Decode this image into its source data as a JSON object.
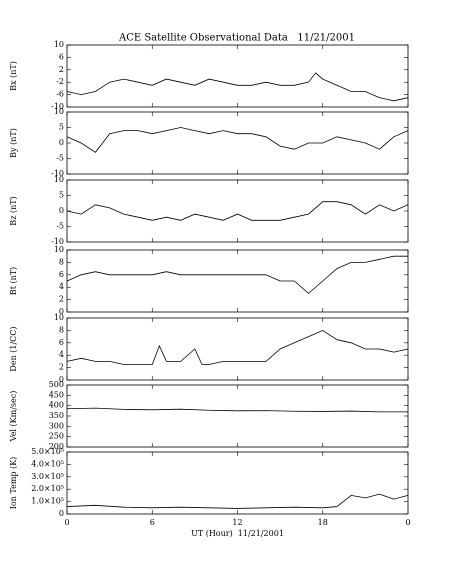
{
  "title": "ACE Satellite Observational Data   11/21/2001",
  "chart_data": [
    {
      "type": "line",
      "ylabel": "Bx (nT)",
      "xlim": [
        0,
        24
      ],
      "xticks": [
        0,
        6,
        12,
        18,
        24
      ],
      "ylim": [
        -10,
        10
      ],
      "yticks": [
        -10,
        -6,
        -2,
        2,
        6,
        10
      ],
      "series": [
        {
          "color": "#000000",
          "x": [
            0,
            1,
            2,
            3,
            4,
            5,
            6,
            7,
            8,
            9,
            10,
            11,
            12,
            13,
            14,
            15,
            16,
            17,
            17.5,
            18,
            19,
            20,
            21,
            22,
            23,
            24
          ],
          "values": [
            -5,
            -6,
            -5,
            -2,
            -1,
            -2,
            -3,
            -1,
            -2,
            -3,
            -1,
            -2,
            -3,
            -3,
            -2,
            -3,
            -3,
            -2,
            1,
            -1,
            -3,
            -5,
            -5,
            -7,
            -8,
            -7
          ]
        }
      ]
    },
    {
      "type": "line",
      "ylabel": "By (nT)",
      "xlim": [
        0,
        24
      ],
      "xticks": [
        0,
        6,
        12,
        18,
        24
      ],
      "ylim": [
        -10,
        10
      ],
      "yticks": [
        -10,
        -5,
        0,
        5,
        10
      ],
      "series": [
        {
          "color": "#000000",
          "x": [
            0,
            1,
            2,
            3,
            4,
            5,
            6,
            7,
            8,
            9,
            10,
            11,
            12,
            13,
            14,
            15,
            16,
            17,
            18,
            19,
            20,
            21,
            22,
            23,
            24
          ],
          "values": [
            2,
            0,
            -3,
            3,
            4,
            4,
            3,
            4,
            5,
            4,
            3,
            4,
            3,
            3,
            2,
            -1,
            -2,
            0,
            0,
            2,
            1,
            0,
            -2,
            2,
            4
          ]
        }
      ]
    },
    {
      "type": "line",
      "ylabel": "Bz (nT)",
      "xlim": [
        0,
        24
      ],
      "xticks": [
        0,
        6,
        12,
        18,
        24
      ],
      "ylim": [
        -10,
        10
      ],
      "yticks": [
        -10,
        -5,
        0,
        5,
        10
      ],
      "series": [
        {
          "color": "#000000",
          "x": [
            0,
            1,
            2,
            3,
            4,
            5,
            6,
            7,
            8,
            9,
            10,
            11,
            12,
            13,
            14,
            15,
            16,
            17,
            18,
            19,
            20,
            21,
            22,
            23,
            24
          ],
          "values": [
            0,
            -1,
            2,
            1,
            -1,
            -2,
            -3,
            -2,
            -3,
            -1,
            -2,
            -3,
            -1,
            -3,
            -3,
            -3,
            -2,
            -1,
            3,
            3,
            2,
            -1,
            2,
            0,
            2
          ]
        }
      ]
    },
    {
      "type": "line",
      "ylabel": "Bt (nT)",
      "xlim": [
        0,
        24
      ],
      "xticks": [
        0,
        6,
        12,
        18,
        24
      ],
      "ylim": [
        0,
        10
      ],
      "yticks": [
        0,
        2,
        4,
        6,
        8,
        10
      ],
      "series": [
        {
          "color": "#000000",
          "x": [
            0,
            1,
            2,
            3,
            4,
            5,
            6,
            7,
            8,
            9,
            10,
            11,
            12,
            13,
            14,
            15,
            16,
            17,
            18,
            19,
            20,
            21,
            22,
            23,
            24
          ],
          "values": [
            5,
            6,
            6.5,
            6,
            6,
            6,
            6,
            6.5,
            6,
            6,
            6,
            6,
            6,
            6,
            6,
            5,
            5,
            3,
            5,
            7,
            8,
            8,
            8.5,
            9,
            9
          ]
        }
      ]
    },
    {
      "type": "line",
      "ylabel": "Den (1/CC)",
      "xlim": [
        0,
        24
      ],
      "xticks": [
        0,
        6,
        12,
        18,
        24
      ],
      "ylim": [
        0,
        10
      ],
      "yticks": [
        0,
        2,
        4,
        6,
        8,
        10
      ],
      "series": [
        {
          "color": "#000000",
          "x": [
            0,
            1,
            2,
            3,
            4,
            5,
            6,
            6.5,
            7,
            8,
            9,
            9.5,
            10,
            11,
            12,
            13,
            14,
            15,
            16,
            17,
            18,
            19,
            20,
            21,
            22,
            23,
            24
          ],
          "values": [
            3,
            3.5,
            3,
            3,
            2.5,
            2.5,
            2.5,
            5.5,
            3,
            3,
            5,
            2.5,
            2.5,
            3,
            3,
            3,
            3,
            5,
            6,
            7,
            8,
            6.5,
            6,
            5,
            5,
            4.5,
            5
          ]
        }
      ]
    },
    {
      "type": "line",
      "ylabel": "Vel (Km/sec)",
      "xlim": [
        0,
        24
      ],
      "xticks": [
        0,
        6,
        12,
        18,
        24
      ],
      "ylim": [
        200,
        500
      ],
      "yticks": [
        200,
        250,
        300,
        350,
        400,
        450,
        500
      ],
      "series": [
        {
          "color": "#000000",
          "x": [
            0,
            2,
            4,
            6,
            8,
            10,
            12,
            14,
            16,
            18,
            20,
            22,
            24
          ],
          "values": [
            385,
            388,
            382,
            380,
            383,
            378,
            375,
            376,
            373,
            372,
            374,
            370,
            370
          ]
        }
      ]
    },
    {
      "type": "line",
      "ylabel": "Ion Temp (K)",
      "xlim": [
        0,
        24
      ],
      "xlabel": "UT (Hour)  11/21/2001",
      "xticks": [
        0,
        6,
        12,
        18,
        {
          "value": 24,
          "label": "0"
        }
      ],
      "ylim": [
        0,
        500000
      ],
      "yticks": [
        0,
        {
          "value": 100000,
          "label": "1.0×10⁵"
        },
        {
          "value": 200000,
          "label": "2.0×10⁵"
        },
        {
          "value": 300000,
          "label": "3.0×10⁵"
        },
        {
          "value": 400000,
          "label": "4.0×10⁵"
        },
        {
          "value": 500000,
          "label": "5.0×10⁵"
        }
      ],
      "series": [
        {
          "color": "#000000",
          "x": [
            0,
            2,
            4,
            6,
            8,
            10,
            12,
            14,
            16,
            18,
            19,
            20,
            21,
            22,
            23,
            24
          ],
          "values": [
            60000,
            70000,
            55000,
            50000,
            55000,
            50000,
            45000,
            50000,
            55000,
            50000,
            60000,
            150000,
            130000,
            160000,
            120000,
            150000
          ]
        }
      ]
    }
  ]
}
